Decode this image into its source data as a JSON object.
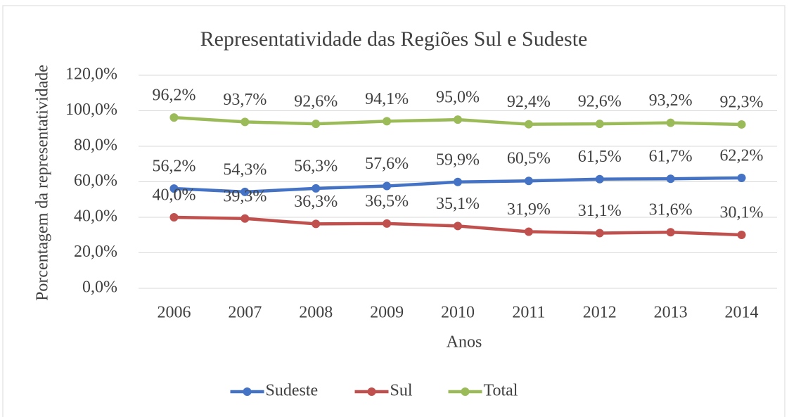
{
  "chart_data": {
    "type": "line",
    "title": "Representatividade das Regiões Sul e Sudeste",
    "x_label": "Anos",
    "y_label": "Porcentagem da representatividade",
    "categories": [
      "2006",
      "2007",
      "2008",
      "2009",
      "2010",
      "2011",
      "2012",
      "2013",
      "2014"
    ],
    "series": [
      {
        "name": "Sudeste",
        "color": "#4472c4",
        "values": [
          56.2,
          54.3,
          56.3,
          57.6,
          59.9,
          60.5,
          61.5,
          61.7,
          62.2
        ],
        "value_labels": [
          "56,2%",
          "54,3%",
          "56,3%",
          "57,6%",
          "59,9%",
          "60,5%",
          "61,5%",
          "61,7%",
          "62,2%"
        ]
      },
      {
        "name": "Sul",
        "color": "#c0504d",
        "values": [
          40.0,
          39.3,
          36.3,
          36.5,
          35.1,
          31.9,
          31.1,
          31.6,
          30.1
        ],
        "value_labels": [
          "40,0%",
          "39,3%",
          "36,3%",
          "36,5%",
          "35,1%",
          "31,9%",
          "31,1%",
          "31,6%",
          "30,1%"
        ]
      },
      {
        "name": "Total",
        "color": "#9bbb59",
        "values": [
          96.2,
          93.7,
          92.6,
          94.1,
          95.0,
          92.4,
          92.6,
          93.2,
          92.3
        ],
        "value_labels": [
          "96,2%",
          "93,7%",
          "92,6%",
          "94,1%",
          "95,0%",
          "92,4%",
          "92,6%",
          "93,2%",
          "92,3%"
        ]
      }
    ],
    "ylim": [
      0,
      120
    ],
    "yticks": [
      {
        "value": 0,
        "label": "0,0%"
      },
      {
        "value": 20,
        "label": "20,0%"
      },
      {
        "value": 40,
        "label": "40,0%"
      },
      {
        "value": 60,
        "label": "60,0%"
      },
      {
        "value": 80,
        "label": "80,0%"
      },
      {
        "value": 100,
        "label": "100,0%"
      },
      {
        "value": 120,
        "label": "120,0%"
      }
    ],
    "grid": true,
    "legend": "bottom"
  }
}
